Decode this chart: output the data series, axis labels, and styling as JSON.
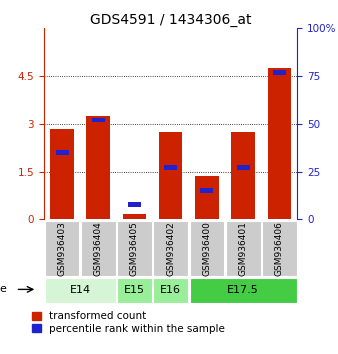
{
  "title": "GDS4591 / 1434306_at",
  "samples": [
    "GSM936403",
    "GSM936404",
    "GSM936405",
    "GSM936402",
    "GSM936400",
    "GSM936401",
    "GSM936406"
  ],
  "transformed_count": [
    2.85,
    3.25,
    0.18,
    2.75,
    1.35,
    2.75,
    4.75
  ],
  "percentile_rank": [
    35,
    52,
    8,
    27,
    15,
    27,
    77
  ],
  "age_groups": [
    {
      "label": "E14",
      "start": 0,
      "end": 2,
      "color": "#d6f5d6"
    },
    {
      "label": "E15",
      "start": 2,
      "end": 3,
      "color": "#99ee99"
    },
    {
      "label": "E16",
      "start": 3,
      "end": 4,
      "color": "#99ee99"
    },
    {
      "label": "E17.5",
      "start": 4,
      "end": 7,
      "color": "#44cc44"
    }
  ],
  "ylim_left": [
    0,
    6
  ],
  "ylim_right": [
    0,
    100
  ],
  "yticks_left": [
    0,
    1.5,
    3.0,
    4.5
  ],
  "yticks_left_labels": [
    "0",
    "1.5",
    "3",
    "4.5"
  ],
  "yticks_right": [
    0,
    25,
    50,
    75,
    100
  ],
  "yticks_right_labels": [
    "0",
    "25",
    "50",
    "75",
    "100%"
  ],
  "bar_color_red": "#cc2200",
  "bar_color_blue": "#2222cc",
  "bar_width": 0.65,
  "background_color": "#ffffff",
  "gray_box_color": "#cccccc",
  "title_fontsize": 10,
  "tick_fontsize": 7.5,
  "label_fontsize": 6.5,
  "legend_fontsize": 7.5,
  "age_fontsize": 8
}
